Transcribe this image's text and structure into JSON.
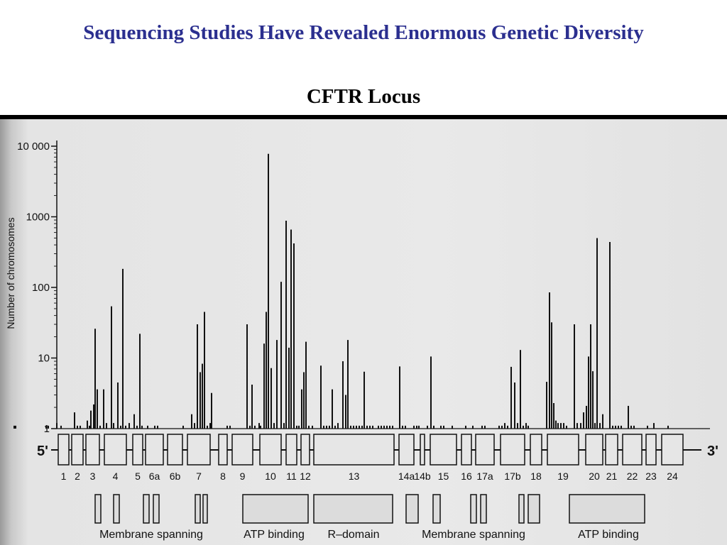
{
  "slide": {
    "title": "Sequencing Studies Have Revealed Enormous Genetic Diversity",
    "subtitle": "CFTR Locus",
    "title_color": "#2b2f8f"
  },
  "chart_data": {
    "type": "bar",
    "ylabel": "Number of chromosomes",
    "yscale": "log",
    "ylim": [
      1,
      10000
    ],
    "yticks": [
      {
        "value": 1,
        "label": "1"
      },
      {
        "value": 10,
        "label": "10"
      },
      {
        "value": 100,
        "label": "100"
      },
      {
        "value": 1000,
        "label": "1000"
      },
      {
        "value": 10000,
        "label": "10 000"
      }
    ],
    "x_domain": [
      0,
      1000
    ],
    "grid": false,
    "bars": [
      {
        "x": 20,
        "value": 1.1
      },
      {
        "x": 22,
        "value": 1.1
      },
      {
        "x": 65,
        "value": 1.1
      },
      {
        "x": 68,
        "value": 1.1
      },
      {
        "x": 80,
        "value": 1.2
      },
      {
        "x": 86,
        "value": 1.1
      },
      {
        "x": 105,
        "value": 1.7
      },
      {
        "x": 109,
        "value": 1.1
      },
      {
        "x": 113,
        "value": 1.1
      },
      {
        "x": 123,
        "value": 1.3
      },
      {
        "x": 126,
        "value": 1.1
      },
      {
        "x": 128,
        "value": 1.8
      },
      {
        "x": 132,
        "value": 2.2
      },
      {
        "x": 134,
        "value": 26
      },
      {
        "x": 137,
        "value": 3.6
      },
      {
        "x": 141,
        "value": 1.1
      },
      {
        "x": 146,
        "value": 3.6
      },
      {
        "x": 150,
        "value": 1.2
      },
      {
        "x": 157,
        "value": 54
      },
      {
        "x": 160,
        "value": 1.2
      },
      {
        "x": 166,
        "value": 4.5
      },
      {
        "x": 170,
        "value": 1.1
      },
      {
        "x": 173,
        "value": 183
      },
      {
        "x": 177,
        "value": 1.1
      },
      {
        "x": 182,
        "value": 1.2
      },
      {
        "x": 189,
        "value": 1.6
      },
      {
        "x": 193,
        "value": 1.1
      },
      {
        "x": 197,
        "value": 22
      },
      {
        "x": 200,
        "value": 1.1
      },
      {
        "x": 208,
        "value": 1.1
      },
      {
        "x": 218,
        "value": 1.1
      },
      {
        "x": 222,
        "value": 1.1
      },
      {
        "x": 258,
        "value": 1.1
      },
      {
        "x": 270,
        "value": 1.6
      },
      {
        "x": 274,
        "value": 1.2
      },
      {
        "x": 278,
        "value": 30
      },
      {
        "x": 282,
        "value": 6.3
      },
      {
        "x": 285,
        "value": 8.3
      },
      {
        "x": 288,
        "value": 45
      },
      {
        "x": 292,
        "value": 1.1
      },
      {
        "x": 296,
        "value": 1.2
      },
      {
        "x": 298,
        "value": 3.2
      },
      {
        "x": 320,
        "value": 1.1
      },
      {
        "x": 324,
        "value": 1.1
      },
      {
        "x": 348,
        "value": 30
      },
      {
        "x": 352,
        "value": 1.1
      },
      {
        "x": 355,
        "value": 4.2
      },
      {
        "x": 359,
        "value": 1.1
      },
      {
        "x": 365,
        "value": 1.2
      },
      {
        "x": 367,
        "value": 1.1
      },
      {
        "x": 372,
        "value": 16
      },
      {
        "x": 375,
        "value": 45
      },
      {
        "x": 378,
        "value": 7800
      },
      {
        "x": 382,
        "value": 7.2
      },
      {
        "x": 386,
        "value": 1.2
      },
      {
        "x": 390,
        "value": 18
      },
      {
        "x": 396,
        "value": 120
      },
      {
        "x": 400,
        "value": 1.2
      },
      {
        "x": 403,
        "value": 880
      },
      {
        "x": 407,
        "value": 14
      },
      {
        "x": 410,
        "value": 660
      },
      {
        "x": 414,
        "value": 420
      },
      {
        "x": 418,
        "value": 1.1
      },
      {
        "x": 421,
        "value": 1.1
      },
      {
        "x": 425,
        "value": 3.6
      },
      {
        "x": 428,
        "value": 6.3
      },
      {
        "x": 431,
        "value": 17
      },
      {
        "x": 435,
        "value": 1.1
      },
      {
        "x": 440,
        "value": 1.1
      },
      {
        "x": 452,
        "value": 7.8
      },
      {
        "x": 456,
        "value": 1.1
      },
      {
        "x": 460,
        "value": 1.1
      },
      {
        "x": 464,
        "value": 1.1
      },
      {
        "x": 468,
        "value": 3.6
      },
      {
        "x": 472,
        "value": 1.1
      },
      {
        "x": 476,
        "value": 1.2
      },
      {
        "x": 483,
        "value": 9.0
      },
      {
        "x": 487,
        "value": 3.0
      },
      {
        "x": 490,
        "value": 18
      },
      {
        "x": 494,
        "value": 1.1
      },
      {
        "x": 498,
        "value": 1.1
      },
      {
        "x": 502,
        "value": 1.1
      },
      {
        "x": 506,
        "value": 1.1
      },
      {
        "x": 510,
        "value": 1.1
      },
      {
        "x": 513,
        "value": 6.4
      },
      {
        "x": 517,
        "value": 1.1
      },
      {
        "x": 521,
        "value": 1.1
      },
      {
        "x": 525,
        "value": 1.1
      },
      {
        "x": 533,
        "value": 1.1
      },
      {
        "x": 537,
        "value": 1.1
      },
      {
        "x": 541,
        "value": 1.1
      },
      {
        "x": 545,
        "value": 1.1
      },
      {
        "x": 549,
        "value": 1.1
      },
      {
        "x": 553,
        "value": 1.1
      },
      {
        "x": 563,
        "value": 7.6
      },
      {
        "x": 567,
        "value": 1.1
      },
      {
        "x": 571,
        "value": 1.1
      },
      {
        "x": 583,
        "value": 1.1
      },
      {
        "x": 587,
        "value": 1.1
      },
      {
        "x": 590,
        "value": 1.1
      },
      {
        "x": 602,
        "value": 1.1
      },
      {
        "x": 607,
        "value": 10.5
      },
      {
        "x": 611,
        "value": 1.1
      },
      {
        "x": 621,
        "value": 1.1
      },
      {
        "x": 625,
        "value": 1.1
      },
      {
        "x": 637,
        "value": 1.1
      },
      {
        "x": 656,
        "value": 1.1
      },
      {
        "x": 666,
        "value": 1.1
      },
      {
        "x": 679,
        "value": 1.1
      },
      {
        "x": 683,
        "value": 1.1
      },
      {
        "x": 703,
        "value": 1.1
      },
      {
        "x": 707,
        "value": 1.1
      },
      {
        "x": 711,
        "value": 1.2
      },
      {
        "x": 715,
        "value": 1.1
      },
      {
        "x": 720,
        "value": 7.5
      },
      {
        "x": 725,
        "value": 4.5
      },
      {
        "x": 729,
        "value": 1.2
      },
      {
        "x": 733,
        "value": 13
      },
      {
        "x": 737,
        "value": 1.1
      },
      {
        "x": 741,
        "value": 1.2
      },
      {
        "x": 744,
        "value": 1.1
      },
      {
        "x": 770,
        "value": 4.6
      },
      {
        "x": 774,
        "value": 85
      },
      {
        "x": 777,
        "value": 32
      },
      {
        "x": 780,
        "value": 2.3
      },
      {
        "x": 783,
        "value": 1.3
      },
      {
        "x": 786,
        "value": 1.2
      },
      {
        "x": 790,
        "value": 1.2
      },
      {
        "x": 794,
        "value": 1.2
      },
      {
        "x": 798,
        "value": 1.1
      },
      {
        "x": 809,
        "value": 30
      },
      {
        "x": 813,
        "value": 1.2
      },
      {
        "x": 818,
        "value": 1.2
      },
      {
        "x": 822,
        "value": 1.7
      },
      {
        "x": 826,
        "value": 2.1
      },
      {
        "x": 829,
        "value": 10.5
      },
      {
        "x": 832,
        "value": 30
      },
      {
        "x": 835,
        "value": 6.5
      },
      {
        "x": 838,
        "value": 1.2
      },
      {
        "x": 841,
        "value": 500
      },
      {
        "x": 845,
        "value": 1.2
      },
      {
        "x": 849,
        "value": 1.6
      },
      {
        "x": 859,
        "value": 440
      },
      {
        "x": 863,
        "value": 1.1
      },
      {
        "x": 867,
        "value": 1.1
      },
      {
        "x": 871,
        "value": 1.1
      },
      {
        "x": 875,
        "value": 1.1
      },
      {
        "x": 885,
        "value": 2.1
      },
      {
        "x": 889,
        "value": 1.1
      },
      {
        "x": 893,
        "value": 1.1
      },
      {
        "x": 912,
        "value": 1.1
      },
      {
        "x": 921,
        "value": 1.2
      },
      {
        "x": 941,
        "value": 1.1
      }
    ],
    "gene_map": {
      "start_label": "5'",
      "end_label": "3'",
      "exons": [
        {
          "label": "1",
          "start": 82,
          "end": 97
        },
        {
          "label": "2",
          "start": 101,
          "end": 117
        },
        {
          "label": "3",
          "start": 121,
          "end": 140
        },
        {
          "label": "4",
          "start": 147,
          "end": 178
        },
        {
          "label": "5",
          "start": 187,
          "end": 201
        },
        {
          "label": "6a",
          "start": 205,
          "end": 230
        },
        {
          "label": "6b",
          "start": 236,
          "end": 257
        },
        {
          "label": "7",
          "start": 264,
          "end": 296
        },
        {
          "label": "8",
          "start": 308,
          "end": 320
        },
        {
          "label": "9",
          "start": 327,
          "end": 356
        },
        {
          "label": "10",
          "start": 366,
          "end": 396
        },
        {
          "label": "11",
          "start": 403,
          "end": 418
        },
        {
          "label": "12",
          "start": 424,
          "end": 436
        },
        {
          "label": "13",
          "start": 442,
          "end": 555
        },
        {
          "label": "14a",
          "start": 562,
          "end": 583
        },
        {
          "label": "14b",
          "start": 592,
          "end": 598
        },
        {
          "label": "15",
          "start": 606,
          "end": 643
        },
        {
          "label": "16",
          "start": 650,
          "end": 664
        },
        {
          "label": "17a",
          "start": 670,
          "end": 696
        },
        {
          "label": "17b",
          "start": 705,
          "end": 739
        },
        {
          "label": "18",
          "start": 747,
          "end": 763
        },
        {
          "label": "19",
          "start": 771,
          "end": 815
        },
        {
          "label": "20",
          "start": 825,
          "end": 849
        },
        {
          "label": "21",
          "start": 853,
          "end": 870
        },
        {
          "label": "22",
          "start": 877,
          "end": 904
        },
        {
          "label": "23",
          "start": 910,
          "end": 924
        },
        {
          "label": "24",
          "start": 932,
          "end": 962
        }
      ],
      "domains": [
        {
          "label": "Membrane spanning",
          "label_center": 213,
          "boxes": [
            [
              134,
              142
            ],
            [
              160,
              168
            ],
            [
              202,
              210
            ],
            [
              216,
              224
            ],
            [
              275,
              282
            ],
            [
              286,
              292
            ]
          ]
        },
        {
          "label": "ATP binding",
          "label_center": 386,
          "boxes": [
            [
              342,
              434
            ]
          ]
        },
        {
          "label": "R–domain",
          "label_center": 498,
          "boxes": [
            [
              442,
              553
            ]
          ]
        },
        {
          "label": "Membrane spanning",
          "label_center": 667,
          "boxes": [
            [
              572,
              589
            ],
            [
              610,
              620
            ],
            [
              663,
              671
            ],
            [
              677,
              685
            ],
            [
              731,
              738
            ],
            [
              744,
              760
            ]
          ]
        },
        {
          "label": "ATP binding",
          "label_center": 857,
          "boxes": [
            [
              802,
              908
            ]
          ]
        }
      ]
    }
  }
}
